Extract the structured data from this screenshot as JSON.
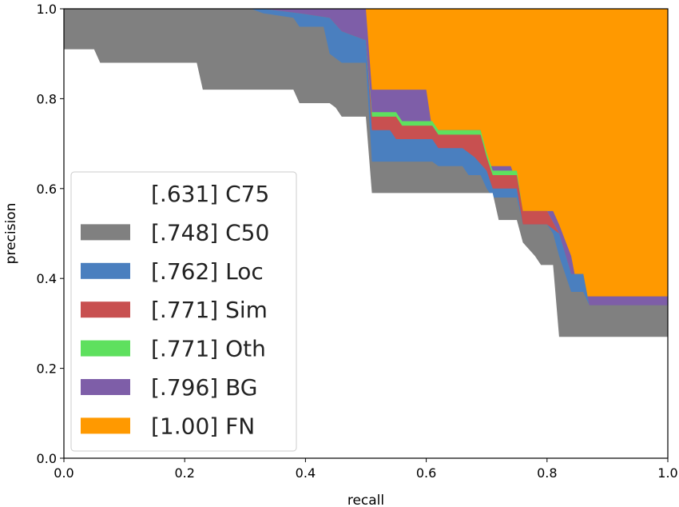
{
  "chart_data": {
    "type": "area",
    "title": "",
    "xlabel": "recall",
    "ylabel": "precision",
    "xlim": [
      0,
      1
    ],
    "ylim": [
      0,
      1
    ],
    "x_ticks": [
      "0.0",
      "0.2",
      "0.4",
      "0.6",
      "0.8",
      "1.0"
    ],
    "y_ticks": [
      "0.0",
      "0.2",
      "0.4",
      "0.6",
      "0.8",
      "1.0"
    ],
    "grid": false,
    "legend_position": "lower-left",
    "series": [
      {
        "name": "[.631] C75",
        "color": "#ffffff",
        "points": [
          [
            0,
            0.91
          ],
          [
            0.05,
            0.91
          ],
          [
            0.06,
            0.88
          ],
          [
            0.22,
            0.88
          ],
          [
            0.23,
            0.82
          ],
          [
            0.38,
            0.82
          ],
          [
            0.39,
            0.79
          ],
          [
            0.44,
            0.79
          ],
          [
            0.45,
            0.78
          ],
          [
            0.46,
            0.76
          ],
          [
            0.5,
            0.76
          ],
          [
            0.51,
            0.59
          ],
          [
            0.71,
            0.59
          ],
          [
            0.72,
            0.53
          ],
          [
            0.75,
            0.53
          ],
          [
            0.76,
            0.48
          ],
          [
            0.78,
            0.45
          ],
          [
            0.79,
            0.43
          ],
          [
            0.81,
            0.43
          ],
          [
            0.82,
            0.27
          ],
          [
            1.0,
            0.27
          ]
        ]
      },
      {
        "name": "[.748] C50",
        "color": "#808080",
        "points": [
          [
            0,
            1.0
          ],
          [
            0.31,
            1.0
          ],
          [
            0.33,
            0.99
          ],
          [
            0.38,
            0.98
          ],
          [
            0.39,
            0.96
          ],
          [
            0.43,
            0.96
          ],
          [
            0.44,
            0.9
          ],
          [
            0.46,
            0.88
          ],
          [
            0.5,
            0.88
          ],
          [
            0.51,
            0.66
          ],
          [
            0.61,
            0.66
          ],
          [
            0.62,
            0.65
          ],
          [
            0.66,
            0.65
          ],
          [
            0.67,
            0.63
          ],
          [
            0.69,
            0.63
          ],
          [
            0.7,
            0.6
          ],
          [
            0.71,
            0.58
          ],
          [
            0.75,
            0.58
          ],
          [
            0.76,
            0.52
          ],
          [
            0.8,
            0.52
          ],
          [
            0.81,
            0.5
          ],
          [
            0.82,
            0.45
          ],
          [
            0.84,
            0.37
          ],
          [
            0.86,
            0.37
          ],
          [
            0.87,
            0.34
          ],
          [
            1.0,
            0.34
          ]
        ]
      },
      {
        "name": "[.762] Loc",
        "color": "#4a7fbf",
        "points": [
          [
            0,
            1.0
          ],
          [
            0.33,
            1.0
          ],
          [
            0.39,
            0.99
          ],
          [
            0.44,
            0.98
          ],
          [
            0.46,
            0.95
          ],
          [
            0.5,
            0.93
          ],
          [
            0.51,
            0.73
          ],
          [
            0.54,
            0.73
          ],
          [
            0.55,
            0.71
          ],
          [
            0.61,
            0.71
          ],
          [
            0.62,
            0.69
          ],
          [
            0.66,
            0.69
          ],
          [
            0.68,
            0.67
          ],
          [
            0.7,
            0.64
          ],
          [
            0.71,
            0.6
          ],
          [
            0.75,
            0.6
          ],
          [
            0.76,
            0.52
          ],
          [
            0.8,
            0.52
          ],
          [
            0.82,
            0.5
          ],
          [
            0.84,
            0.41
          ],
          [
            0.86,
            0.41
          ],
          [
            0.87,
            0.34
          ],
          [
            1.0,
            0.34
          ]
        ]
      },
      {
        "name": "[.771] Sim",
        "color": "#c85050",
        "points": [
          [
            0,
            1.0
          ],
          [
            0.33,
            1.0
          ],
          [
            0.39,
            0.99
          ],
          [
            0.44,
            0.98
          ],
          [
            0.46,
            0.95
          ],
          [
            0.5,
            0.93
          ],
          [
            0.51,
            0.76
          ],
          [
            0.55,
            0.76
          ],
          [
            0.56,
            0.74
          ],
          [
            0.61,
            0.74
          ],
          [
            0.62,
            0.72
          ],
          [
            0.69,
            0.72
          ],
          [
            0.7,
            0.67
          ],
          [
            0.71,
            0.63
          ],
          [
            0.75,
            0.63
          ],
          [
            0.76,
            0.55
          ],
          [
            0.8,
            0.55
          ],
          [
            0.82,
            0.5
          ],
          [
            0.84,
            0.41
          ],
          [
            0.86,
            0.41
          ],
          [
            0.87,
            0.34
          ],
          [
            1.0,
            0.34
          ]
        ]
      },
      {
        "name": "[.771] Oth",
        "color": "#5ee05e",
        "points": [
          [
            0,
            1.0
          ],
          [
            0.33,
            1.0
          ],
          [
            0.39,
            0.99
          ],
          [
            0.44,
            0.98
          ],
          [
            0.46,
            0.95
          ],
          [
            0.5,
            0.93
          ],
          [
            0.51,
            0.77
          ],
          [
            0.55,
            0.77
          ],
          [
            0.56,
            0.75
          ],
          [
            0.61,
            0.75
          ],
          [
            0.62,
            0.73
          ],
          [
            0.69,
            0.73
          ],
          [
            0.7,
            0.68
          ],
          [
            0.71,
            0.64
          ],
          [
            0.75,
            0.64
          ],
          [
            0.76,
            0.55
          ],
          [
            0.8,
            0.55
          ],
          [
            0.82,
            0.5
          ],
          [
            0.84,
            0.41
          ],
          [
            0.86,
            0.41
          ],
          [
            0.87,
            0.34
          ],
          [
            1.0,
            0.34
          ]
        ]
      },
      {
        "name": "[.796] BG",
        "color": "#7e5ea8",
        "points": [
          [
            0,
            1.0
          ],
          [
            0.5,
            1.0
          ],
          [
            0.51,
            0.82
          ],
          [
            0.6,
            0.82
          ],
          [
            0.61,
            0.73
          ],
          [
            0.66,
            0.73
          ],
          [
            0.67,
            0.73
          ],
          [
            0.69,
            0.73
          ],
          [
            0.7,
            0.65
          ],
          [
            0.74,
            0.65
          ],
          [
            0.75,
            0.61
          ],
          [
            0.76,
            0.55
          ],
          [
            0.81,
            0.55
          ],
          [
            0.82,
            0.52
          ],
          [
            0.84,
            0.45
          ],
          [
            0.85,
            0.38
          ],
          [
            0.86,
            0.36
          ],
          [
            1.0,
            0.36
          ]
        ]
      },
      {
        "name": "[1.00] FN",
        "color": "#ff9900",
        "points": [
          [
            0,
            1.0
          ],
          [
            1.0,
            1.0
          ]
        ]
      }
    ]
  }
}
